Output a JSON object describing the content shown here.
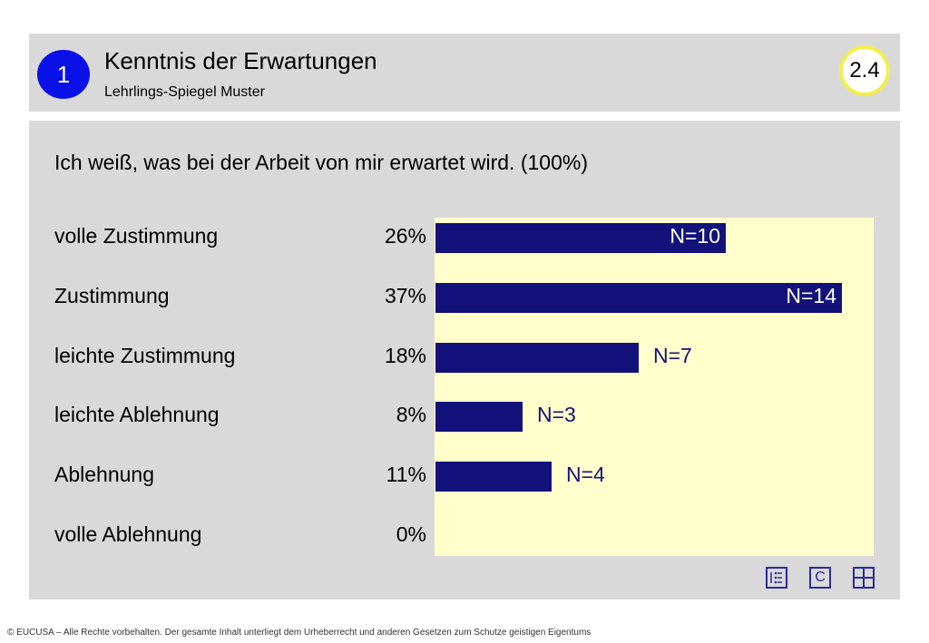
{
  "header": {
    "section_number": "1",
    "title": "Kenntnis der Erwartungen",
    "subtitle": "Lehrlings-Spiegel Muster",
    "page_number": "2.4"
  },
  "chart_data": {
    "type": "bar",
    "orientation": "horizontal",
    "title": "Ich weiß, was bei der Arbeit von mir erwartet wird. (100%)",
    "categories": [
      "volle Zustimmung",
      "Zustimmung",
      "leichte Zustimmung",
      "leichte Ablehnung",
      "Ablehnung",
      "volle Ablehnung"
    ],
    "percent_labels": [
      "26%",
      "37%",
      "18%",
      "8%",
      "11%",
      "0%"
    ],
    "values": [
      10,
      14,
      7,
      3,
      4,
      0
    ],
    "n_labels": [
      "N=10",
      "N=14",
      "N=7",
      "N=3",
      "N=4",
      ""
    ],
    "xlim": [
      0,
      15
    ],
    "bar_color": "#12127a",
    "plot_background": "#ffffcc"
  },
  "nav": {
    "c_label": "C"
  },
  "footer": {
    "text": "© EUCUSA – Alle Rechte vorbehalten. Der gesamte Inhalt unterliegt dem Urheberrecht und anderen Gesetzen zum Schutze geistigen Eigentums"
  }
}
